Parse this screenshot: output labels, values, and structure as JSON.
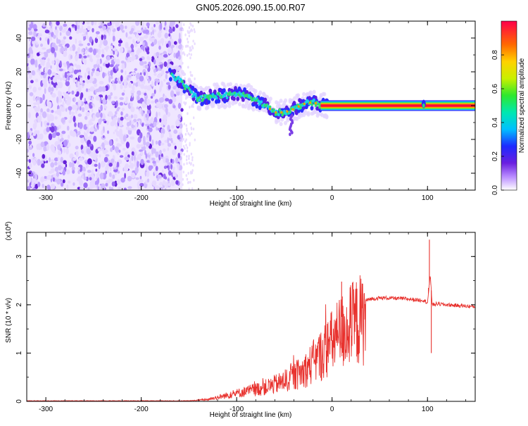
{
  "title": "GN05.2026.090.15.00.R07",
  "chart_data": [
    {
      "type": "heatmap",
      "xlabel": "Height of straight line (km)",
      "ylabel": "Frequency (Hz)",
      "xlim": [
        -320,
        150
      ],
      "ylim": [
        -50,
        50
      ],
      "xticks": [
        -300,
        -200,
        -100,
        0,
        100
      ],
      "yticks": [
        -40,
        -20,
        0,
        20,
        40
      ],
      "grid": false,
      "noise_region_x": [
        -320,
        -157
      ],
      "ridge": {
        "x": [
          -168,
          -160,
          -150,
          -140,
          -130,
          -120,
          -110,
          -100,
          -90,
          -80,
          -70,
          -60,
          -50,
          -40,
          -30,
          -20,
          -10,
          0,
          50,
          100,
          150
        ],
        "y": [
          18,
          15,
          9,
          4,
          5,
          6,
          6,
          7,
          6,
          3,
          0,
          -4,
          -4,
          -2,
          1,
          2,
          0,
          0,
          0,
          0,
          0
        ]
      },
      "colorbar": {
        "label": "Normalized spectral amplitude",
        "range": [
          0,
          1
        ],
        "ticks": [
          0.0,
          0.2,
          0.4,
          0.6,
          0.8
        ],
        "tick_labels": [
          "0.0",
          "0.2",
          "0.4",
          "0.6",
          "0.8"
        ],
        "colormap": "rainbow"
      }
    },
    {
      "type": "line",
      "xlabel": "Height of straight line (km)",
      "ylabel": "SNR (10 * v/v)",
      "multiplier": "(x10^4)",
      "multiplier_base": "(x10",
      "multiplier_exp": "4",
      "multiplier_close": ")",
      "xlim": [
        -320,
        150
      ],
      "ylim": [
        0,
        3.5
      ],
      "xticks": [
        -300,
        -200,
        -100,
        0,
        100
      ],
      "yticks": [
        0,
        1,
        2,
        3
      ],
      "color": "#e8322e",
      "envelope": {
        "x": [
          -320,
          -150,
          -130,
          -110,
          -90,
          -70,
          -50,
          -30,
          -10,
          10,
          20,
          30,
          40,
          50,
          60,
          70,
          80,
          90,
          95,
          100,
          103,
          105,
          110,
          120,
          150
        ],
        "y": [
          0.01,
          0.01,
          0.05,
          0.15,
          0.25,
          0.35,
          0.5,
          0.75,
          1.2,
          1.75,
          1.9,
          2.05,
          2.12,
          2.14,
          2.14,
          2.13,
          2.12,
          2.1,
          2.1,
          2.05,
          2.6,
          2.0,
          2.02,
          2.0,
          1.96
        ]
      },
      "spikes": [
        {
          "x": 102,
          "y": 3.35
        },
        {
          "x": 104,
          "y": 1.0
        },
        {
          "x": 10,
          "y": 2.48
        },
        {
          "x": 101,
          "y": 2.35
        }
      ]
    }
  ]
}
